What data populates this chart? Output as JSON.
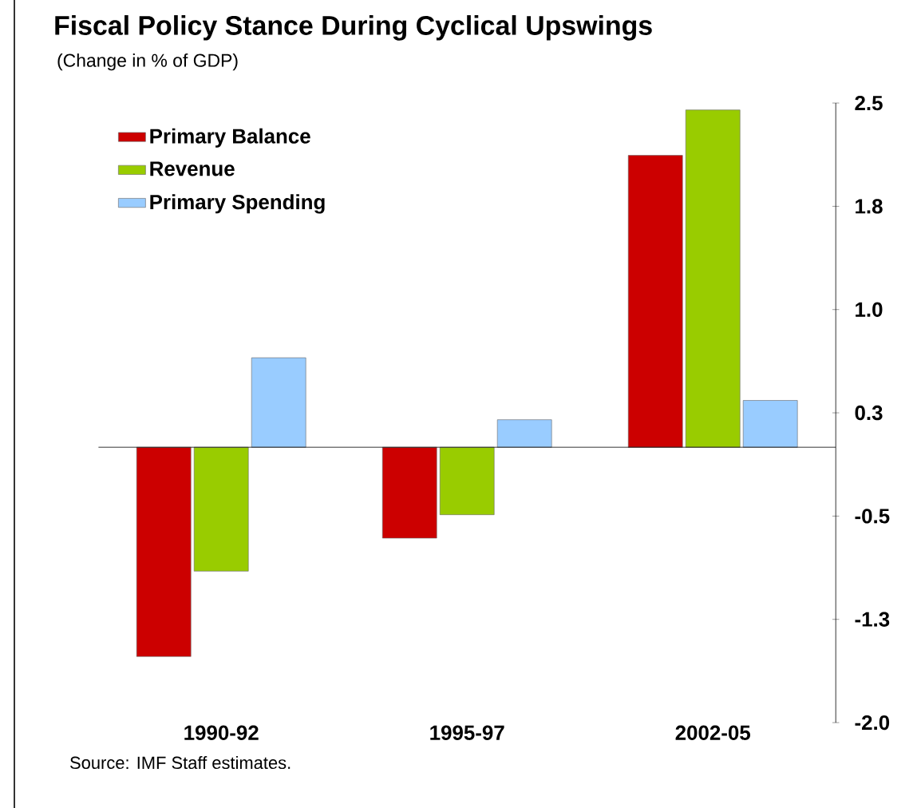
{
  "chart_data": {
    "type": "bar",
    "title": "Fiscal Policy Stance During Cyclical Upswings",
    "subtitle": "(Change in % of GDP)",
    "categories": [
      "1990-92",
      "1995-97",
      "2002-05"
    ],
    "series": [
      {
        "name": "Primary Balance",
        "color": "#cc0000",
        "values": [
          -1.52,
          -0.66,
          2.12
        ]
      },
      {
        "name": "Revenue",
        "color": "#99cc00",
        "values": [
          -0.9,
          -0.49,
          2.45
        ]
      },
      {
        "name": "Primary Spending",
        "color": "#99ccff",
        "values": [
          0.65,
          0.2,
          0.34
        ]
      }
    ],
    "ylim": [
      -2.0,
      2.5
    ],
    "yticks": [
      {
        "value": 2.5,
        "label": "2.5"
      },
      {
        "value": 1.75,
        "label": "1.8"
      },
      {
        "value": 1.0,
        "label": "1.0"
      },
      {
        "value": 0.25,
        "label": "0.3"
      },
      {
        "value": -0.5,
        "label": "-0.5"
      },
      {
        "value": -1.25,
        "label": "-1.3"
      },
      {
        "value": -2.0,
        "label": "-2.0"
      }
    ],
    "grid": false,
    "legend": "top left",
    "annotations": [
      "Source: IMF Staff estimates."
    ]
  }
}
